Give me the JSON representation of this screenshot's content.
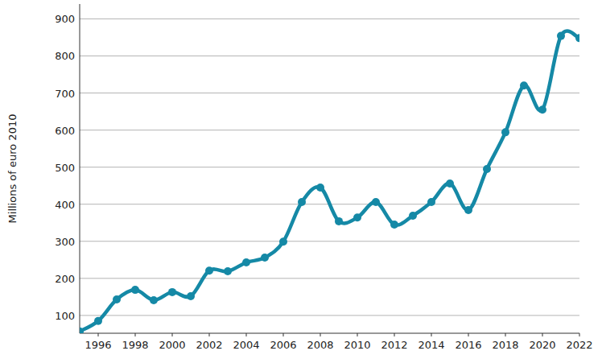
{
  "chart_data": {
    "type": "line",
    "y_label": "Millions of euro 2010",
    "x": [
      1995,
      1996,
      1997,
      1998,
      1999,
      2000,
      2001,
      2002,
      2003,
      2004,
      2005,
      2006,
      2007,
      2008,
      2009,
      2010,
      2011,
      2012,
      2013,
      2014,
      2015,
      2016,
      2017,
      2018,
      2019,
      2020,
      2021,
      2022
    ],
    "values": [
      57,
      85,
      143,
      169,
      141,
      163,
      152,
      221,
      219,
      243,
      256,
      299,
      406,
      445,
      354,
      364,
      406,
      345,
      369,
      406,
      456,
      384,
      495,
      594,
      720,
      655,
      854,
      848
    ],
    "color": "#1589a6",
    "marker": "circle",
    "xlim": [
      1995,
      2022
    ],
    "xticks": [
      1996,
      1998,
      2000,
      2002,
      2004,
      2006,
      2008,
      2010,
      2012,
      2014,
      2016,
      2018,
      2020,
      2022
    ],
    "ylim": [
      52,
      940
    ],
    "yticks": [
      100,
      200,
      300,
      400,
      500,
      600,
      700,
      800,
      900
    ],
    "grid": true
  }
}
